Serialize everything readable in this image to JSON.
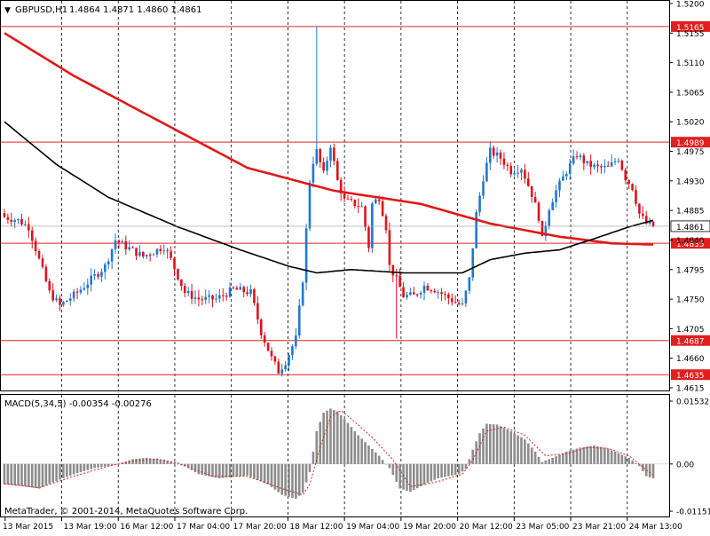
{
  "header": {
    "symbol_label": "GBPUSD,H1",
    "ohlc_label": "1.4864 1.4871 1.4860 1.4861"
  },
  "copyright": "MetaTrader, © 2001-2014, MetaQuotes Software Corp.",
  "colors": {
    "background": "#ffffff",
    "grid": "#000000",
    "bull_candle": "#1e78d2",
    "bear_candle": "#e0101a",
    "ma_fast": "#e01818",
    "ma_slow": "#000000",
    "hline": "#e02020",
    "price_box_bg": "#e02020",
    "macd_hist": "#8c8c8c",
    "macd_signal": "#e02020",
    "axis": "#000000"
  },
  "chart_data": [
    {
      "type": "candlestick",
      "symbol": "GBPUSD",
      "timeframe": "H1",
      "ylim": [
        1.4615,
        1.52
      ],
      "y_ticks": [
        "1.5200",
        "1.5155",
        "1.5110",
        "1.5065",
        "1.5020",
        "1.4975",
        "1.4930",
        "1.4885",
        "1.4840",
        "1.4795",
        "1.4750",
        "1.4705",
        "1.4660",
        "1.4615"
      ],
      "x_ticks": [
        "13 Mar 2015",
        "13 Mar 19:00",
        "16 Mar 12:00",
        "17 Mar 04:00",
        "17 Mar 20:00",
        "18 Mar 12:00",
        "19 Mar 04:00",
        "19 Mar 20:00",
        "20 Mar 12:00",
        "23 Mar 05:00",
        "23 Mar 21:00",
        "24 Mar 13:00"
      ],
      "horizontal_lines": [
        {
          "value": 1.5165,
          "label": "1.5165"
        },
        {
          "value": 1.4989,
          "label": "1.4989"
        },
        {
          "value": 1.4835,
          "label": "1.4835"
        },
        {
          "value": 1.4687,
          "label": "1.4687"
        },
        {
          "value": 1.4635,
          "label": "1.4635"
        }
      ],
      "current_price": {
        "value": 1.4861,
        "label": "1.4861"
      },
      "close_anchors": [
        [
          0,
          1.4875
        ],
        [
          4,
          1.487
        ],
        [
          7,
          1.486
        ],
        [
          10,
          1.481
        ],
        [
          13,
          1.476
        ],
        [
          16,
          1.474
        ],
        [
          21,
          1.476
        ],
        [
          26,
          1.4785
        ],
        [
          29,
          1.48
        ],
        [
          32,
          1.484
        ],
        [
          35,
          1.483
        ],
        [
          40,
          1.4815
        ],
        [
          46,
          1.483
        ],
        [
          48,
          1.481
        ],
        [
          52,
          1.476
        ],
        [
          56,
          1.475
        ],
        [
          61,
          1.475
        ],
        [
          66,
          1.4765
        ],
        [
          71,
          1.476
        ],
        [
          74,
          1.47
        ],
        [
          77,
          1.466
        ],
        [
          79,
          1.464
        ],
        [
          81,
          1.4655
        ],
        [
          84,
          1.469
        ],
        [
          86,
          1.478
        ],
        [
          88,
          1.493
        ],
        [
          89,
          1.496
        ],
        [
          90,
          1.4975
        ],
        [
          92,
          1.494
        ],
        [
          94,
          1.4985
        ],
        [
          96,
          1.493
        ],
        [
          98,
          1.49
        ],
        [
          101,
          1.4895
        ],
        [
          103,
          1.489
        ],
        [
          105,
          1.483
        ],
        [
          106,
          1.4895
        ],
        [
          108,
          1.4905
        ],
        [
          110,
          1.486
        ],
        [
          111,
          1.48
        ],
        [
          113,
          1.478
        ],
        [
          115,
          1.4755
        ],
        [
          118,
          1.4755
        ],
        [
          121,
          1.477
        ],
        [
          124,
          1.4765
        ],
        [
          127,
          1.4755
        ],
        [
          130,
          1.4745
        ],
        [
          132,
          1.474
        ],
        [
          134,
          1.478
        ],
        [
          136,
          1.488
        ],
        [
          138,
          1.4935
        ],
        [
          140,
          1.4975
        ],
        [
          143,
          1.4965
        ],
        [
          146,
          1.4945
        ],
        [
          149,
          1.495
        ],
        [
          152,
          1.491
        ],
        [
          154,
          1.4875
        ],
        [
          155,
          1.484
        ],
        [
          157,
          1.489
        ],
        [
          159,
          1.4915
        ],
        [
          162,
          1.4945
        ],
        [
          165,
          1.497
        ],
        [
          168,
          1.4955
        ],
        [
          171,
          1.495
        ],
        [
          174,
          1.495
        ],
        [
          177,
          1.4965
        ],
        [
          179,
          1.4935
        ],
        [
          181,
          1.492
        ],
        [
          183,
          1.488
        ],
        [
          185,
          1.4865
        ],
        [
          187,
          1.4861
        ]
      ],
      "series": [
        {
          "name": "MA fast",
          "points": [
            [
              0,
              1.5155
            ],
            [
              20,
              1.509
            ],
            [
              45,
              1.502
            ],
            [
              70,
              1.495
            ],
            [
              95,
              1.4915
            ],
            [
              120,
              1.4895
            ],
            [
              140,
              1.4865
            ],
            [
              160,
              1.4845
            ],
            [
              175,
              1.4835
            ],
            [
              187,
              1.4833
            ]
          ]
        },
        {
          "name": "MA slow",
          "points": [
            [
              0,
              1.502
            ],
            [
              15,
              1.4955
            ],
            [
              30,
              1.4905
            ],
            [
              50,
              1.486
            ],
            [
              68,
              1.4825
            ],
            [
              82,
              1.48
            ],
            [
              90,
              1.479
            ],
            [
              100,
              1.4795
            ],
            [
              115,
              1.479
            ],
            [
              132,
              1.479
            ],
            [
              140,
              1.481
            ],
            [
              150,
              1.482
            ],
            [
              160,
              1.4825
            ],
            [
              170,
              1.4842
            ],
            [
              180,
              1.486
            ],
            [
              187,
              1.487
            ]
          ]
        }
      ]
    },
    {
      "type": "histogram",
      "name": "MACD(5,34,5)",
      "label": "MACD(5,34,5) -0.00354 -0.00276",
      "ylim": [
        -0.0115,
        0.01532
      ],
      "y_ticks": [
        "0.01532",
        "0.00",
        "-0.01151"
      ],
      "hist_anchors": [
        [
          0,
          -0.005
        ],
        [
          6,
          -0.0055
        ],
        [
          10,
          -0.006
        ],
        [
          14,
          -0.0045
        ],
        [
          20,
          -0.0025
        ],
        [
          26,
          -0.001
        ],
        [
          32,
          -0.0002
        ],
        [
          37,
          0.0012
        ],
        [
          41,
          0.0015
        ],
        [
          46,
          0.001
        ],
        [
          52,
          -0.0005
        ],
        [
          56,
          -0.0025
        ],
        [
          62,
          -0.0035
        ],
        [
          70,
          -0.0028
        ],
        [
          76,
          -0.005
        ],
        [
          80,
          -0.0075
        ],
        [
          84,
          -0.0085
        ],
        [
          86,
          -0.007
        ],
        [
          88,
          -0.002
        ],
        [
          90,
          0.008
        ],
        [
          92,
          0.0125
        ],
        [
          94,
          0.0135
        ],
        [
          96,
          0.0128
        ],
        [
          99,
          0.01
        ],
        [
          102,
          0.007
        ],
        [
          105,
          0.0045
        ],
        [
          108,
          0.002
        ],
        [
          111,
          -0.001
        ],
        [
          114,
          -0.006
        ],
        [
          117,
          -0.0068
        ],
        [
          121,
          -0.005
        ],
        [
          125,
          -0.0035
        ],
        [
          128,
          -0.003
        ],
        [
          131,
          -0.0025
        ],
        [
          133,
          -0.0012
        ],
        [
          135,
          0.0035
        ],
        [
          137,
          0.0075
        ],
        [
          139,
          0.0098
        ],
        [
          142,
          0.0096
        ],
        [
          146,
          0.008
        ],
        [
          150,
          0.006
        ],
        [
          153,
          0.003
        ],
        [
          155,
          0.0005
        ],
        [
          158,
          0.0015
        ],
        [
          162,
          0.003
        ],
        [
          166,
          0.004
        ],
        [
          170,
          0.0045
        ],
        [
          173,
          0.004
        ],
        [
          176,
          0.003
        ],
        [
          180,
          0.0015
        ],
        [
          183,
          -0.0005
        ],
        [
          185,
          -0.003
        ],
        [
          187,
          -0.0035
        ]
      ],
      "signal_anchors": [
        [
          0,
          -0.0048
        ],
        [
          10,
          -0.0058
        ],
        [
          20,
          -0.003
        ],
        [
          30,
          -0.0005
        ],
        [
          38,
          0.0008
        ],
        [
          44,
          0.0012
        ],
        [
          50,
          0.0002
        ],
        [
          60,
          -0.003
        ],
        [
          70,
          -0.003
        ],
        [
          80,
          -0.006
        ],
        [
          86,
          -0.0075
        ],
        [
          88,
          -0.005
        ],
        [
          91,
          0.004
        ],
        [
          94,
          0.0115
        ],
        [
          97,
          0.013
        ],
        [
          100,
          0.011
        ],
        [
          106,
          0.0065
        ],
        [
          112,
          0.001
        ],
        [
          117,
          -0.0055
        ],
        [
          124,
          -0.0045
        ],
        [
          132,
          -0.0025
        ],
        [
          135,
          0.001
        ],
        [
          139,
          0.008
        ],
        [
          144,
          0.009
        ],
        [
          150,
          0.007
        ],
        [
          156,
          0.002
        ],
        [
          162,
          0.0025
        ],
        [
          168,
          0.004
        ],
        [
          174,
          0.0038
        ],
        [
          180,
          0.002
        ],
        [
          187,
          -0.0028
        ]
      ]
    }
  ]
}
